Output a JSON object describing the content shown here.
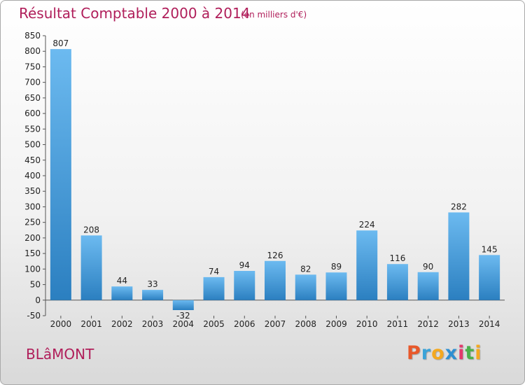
{
  "header": {
    "title": "Résultat Comptable 2000 à 2014",
    "subtitle": "(en milliers d'€)"
  },
  "footer": {
    "town": "BLâMONT",
    "logo": {
      "letters": [
        "P",
        "r",
        "o",
        "x",
        "i",
        "t",
        "i"
      ],
      "colors": [
        "#e8582a",
        "#3aa3d8",
        "#f4a81f",
        "#2e8fd1",
        "#e23a6c",
        "#4bb04a",
        "#f4a81f"
      ]
    }
  },
  "chart_data": {
    "type": "bar",
    "categories": [
      "2000",
      "2001",
      "2002",
      "2003",
      "2004",
      "2005",
      "2006",
      "2007",
      "2008",
      "2009",
      "2010",
      "2011",
      "2012",
      "2013",
      "2014"
    ],
    "values": [
      807,
      208,
      44,
      33,
      -32,
      74,
      94,
      126,
      82,
      89,
      224,
      116,
      90,
      282,
      145
    ],
    "data_labels": [
      "807",
      "208",
      "44",
      "33",
      "-32",
      "74",
      "94",
      "126",
      "82",
      "89",
      "224",
      "116",
      "90",
      "282",
      "145"
    ],
    "ylim": [
      -50,
      850
    ],
    "yticks": [
      -50,
      0,
      50,
      100,
      150,
      200,
      250,
      300,
      350,
      400,
      450,
      500,
      550,
      600,
      650,
      700,
      750,
      800,
      850
    ],
    "grid": false,
    "bar_color_light": "#6cbaf0",
    "bar_color_dark": "#2b7fc0",
    "axis_color": "#555555"
  }
}
